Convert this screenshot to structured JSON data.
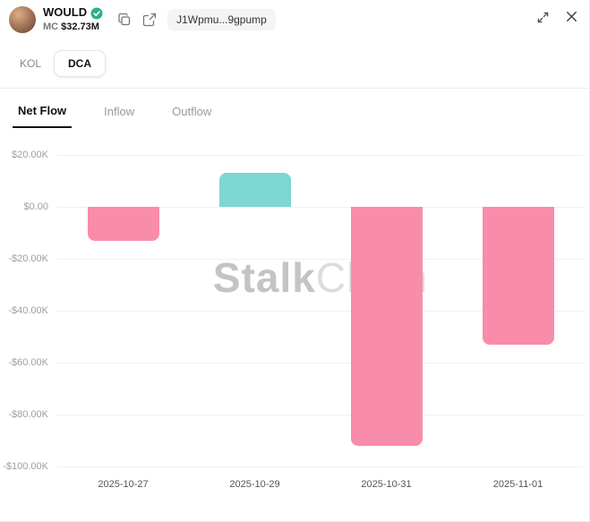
{
  "header": {
    "name": "WOULD",
    "mc_label": "MC",
    "mc_value": "$32.73M",
    "address_pill": "J1Wpmu...9gpump"
  },
  "tabs": {
    "kol": "KOL",
    "dca": "DCA"
  },
  "subtabs": {
    "net_flow": "Net Flow",
    "inflow": "Inflow",
    "outflow": "Outflow"
  },
  "watermark": {
    "part1": "Stalk",
    "part2": "Chain"
  },
  "colors": {
    "positive_bar": "#7dd7d2",
    "negative_bar": "#fa8cab",
    "verified_badge": "#2ab08f",
    "gridline": "#f0f0f0"
  },
  "chart_data": {
    "type": "bar",
    "title": "Net Flow",
    "categories": [
      "2025-10-27",
      "2025-10-29",
      "2025-10-31",
      "2025-11-01"
    ],
    "values": [
      -13000,
      13000,
      -92000,
      -53000
    ],
    "series": [
      {
        "name": "Net Flow",
        "values": [
          -13000,
          13000,
          -92000,
          -53000
        ]
      }
    ],
    "ylim": [
      -100000,
      20000
    ],
    "ytick_step": 20000,
    "ytick_labels": [
      "$20.00K",
      "$0.00",
      "-$20.00K",
      "-$40.00K",
      "-$60.00K",
      "-$80.00K",
      "-$100.00K"
    ],
    "grid": true,
    "legend": "none",
    "positive_color": "#7dd7d2",
    "negative_color": "#fa8cab"
  }
}
